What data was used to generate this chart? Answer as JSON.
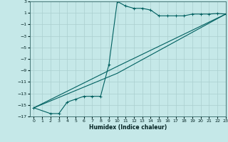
{
  "xlabel": "Humidex (Indice chaleur)",
  "bg_color": "#c5e8e8",
  "line_color": "#006060",
  "grid_color": "#aacfcf",
  "ylim": [
    -17,
    3
  ],
  "xlim": [
    -0.5,
    23
  ],
  "yticks": [
    3,
    1,
    -1,
    -3,
    -5,
    -7,
    -9,
    -11,
    -13,
    -15,
    -17
  ],
  "xticks": [
    0,
    1,
    2,
    3,
    4,
    5,
    6,
    7,
    8,
    9,
    10,
    11,
    12,
    13,
    14,
    15,
    16,
    17,
    18,
    19,
    20,
    21,
    22,
    23
  ],
  "line1_x": [
    0,
    2,
    3,
    4,
    5,
    6,
    7,
    8,
    9,
    10,
    11,
    12,
    13,
    14,
    15,
    16,
    17,
    18,
    19,
    20,
    21,
    22,
    23
  ],
  "line1_y": [
    -15.5,
    -16.5,
    -16.5,
    -14.5,
    -14.0,
    -13.5,
    -13.5,
    -13.5,
    -8.0,
    3.0,
    2.2,
    1.8,
    1.8,
    1.5,
    0.5,
    0.5,
    0.5,
    0.5,
    0.8,
    0.8,
    0.8,
    0.9,
    0.8
  ],
  "line2_x": [
    0,
    10,
    23
  ],
  "line2_y": [
    -15.5,
    -8.3,
    0.8
  ],
  "line3_x": [
    0,
    10,
    23
  ],
  "line3_y": [
    -15.5,
    -9.5,
    0.8
  ]
}
